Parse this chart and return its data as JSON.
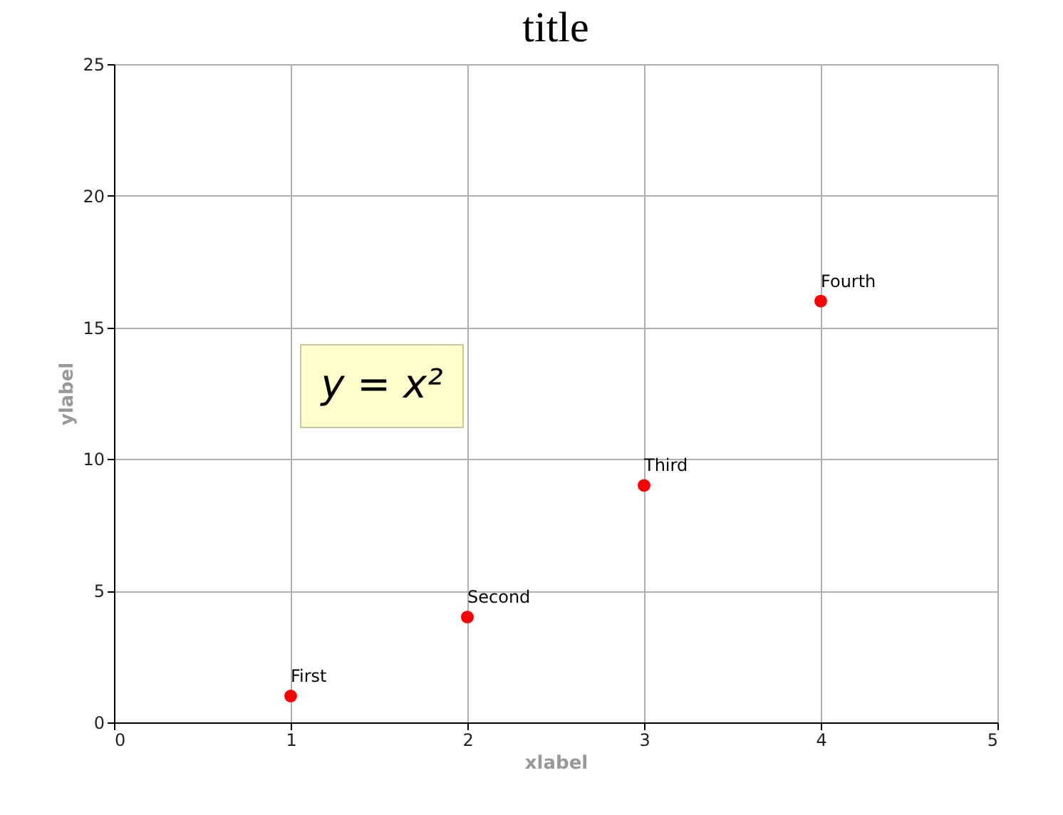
{
  "chart_data": {
    "type": "scatter",
    "title": "title",
    "xlabel": "xlabel",
    "ylabel": "ylabel",
    "x": [
      1,
      2,
      3,
      4
    ],
    "series": [
      {
        "color": "#ff0000",
        "values": [
          1,
          4,
          9,
          16
        ]
      }
    ],
    "xlim": [
      0,
      5
    ],
    "xticks": [
      0,
      1,
      2,
      3,
      4,
      5
    ],
    "ylim": [
      0,
      25
    ],
    "yticks": [
      0,
      5,
      10,
      15,
      20,
      25
    ],
    "grid": true,
    "marker": "circle",
    "annotations": [
      {
        "text": "First",
        "x": 1,
        "y": 1
      },
      {
        "text": "Second",
        "x": 2,
        "y": 4
      },
      {
        "text": "Third",
        "x": 3,
        "y": 9
      },
      {
        "text": "Fourth",
        "x": 4,
        "y": 16
      },
      "y = x²"
    ]
  }
}
